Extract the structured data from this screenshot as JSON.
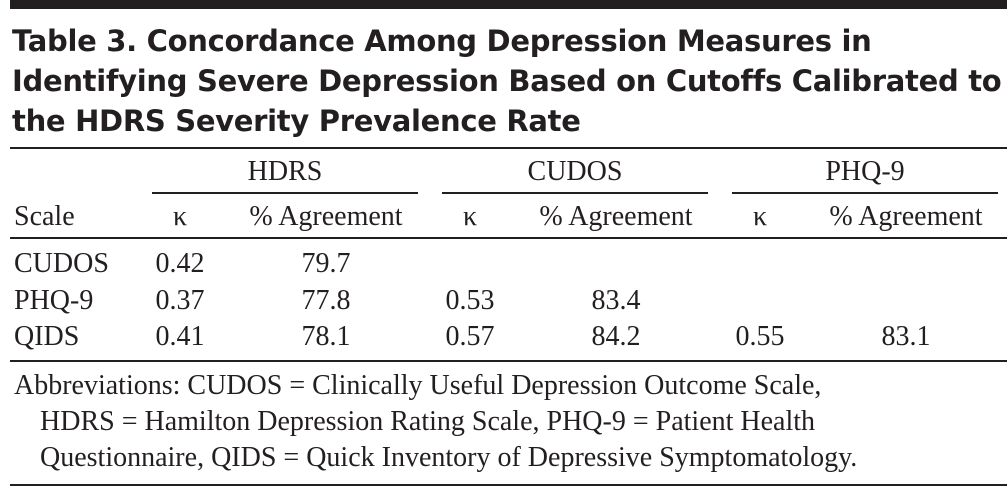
{
  "header": {
    "title": [
      "Table 3. Concordance Among Depression Measures in",
      "Identifying Severe Depression Based on Cutoffs Calibrated to",
      "the HDRS Severity Prevalence Rate"
    ]
  },
  "table": {
    "groups": [
      "HDRS",
      "CUDOS",
      "PHQ-9"
    ],
    "columns": [
      "Scale",
      "κ",
      "% Agreement",
      "κ",
      "% Agreement",
      "κ",
      "% Agreement"
    ],
    "rows": [
      [
        "CUDOS",
        0.42,
        79.7,
        null,
        null,
        null,
        null
      ],
      [
        "PHQ-9",
        0.37,
        77.8,
        0.53,
        83.4,
        null,
        null
      ],
      [
        "QIDS",
        0.41,
        78.1,
        0.57,
        84.2,
        0.55,
        83.1
      ]
    ]
  },
  "footnote": [
    "Abbreviations: CUDOS = Clinically Useful Depression Outcome Scale,",
    "HDRS = Hamilton Depression Rating Scale, PHQ-9 = Patient Health",
    "Questionnaire, QIDS = Quick Inventory of Depressive Symptomatology."
  ]
}
